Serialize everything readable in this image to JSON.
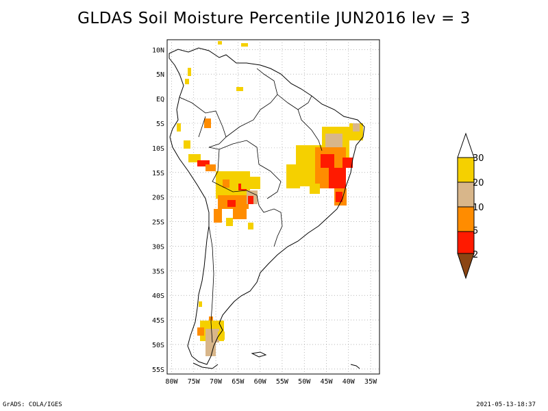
{
  "title": "GLDAS Soil Moisture Percentile JUN2016 lev = 3",
  "footer": {
    "left": "GrADS: COLA/IGES",
    "right": "2021-05-13-18:37"
  },
  "map": {
    "lon_ticks": [
      "80W",
      "75W",
      "70W",
      "65W",
      "60W",
      "55W",
      "50W",
      "45W",
      "40W",
      "35W"
    ],
    "lat_ticks": [
      "10N",
      "5N",
      "EQ",
      "5S",
      "10S",
      "15S",
      "20S",
      "25S",
      "30S",
      "35S",
      "40S",
      "45S",
      "50S",
      "55S"
    ],
    "lon_range": [
      -81,
      -33
    ],
    "lat_range": [
      -56,
      12
    ],
    "grid": true
  },
  "colorbar": {
    "labels": [
      "30",
      "20",
      "10",
      "5",
      "2"
    ],
    "colors": {
      "gt30": "#ffffff",
      "c20_30": "#f5d000",
      "c10_20": "#d8b68a",
      "c5_10": "#ff8c00",
      "c2_5": "#ff1a00",
      "lt2": "#8b4513"
    }
  }
}
